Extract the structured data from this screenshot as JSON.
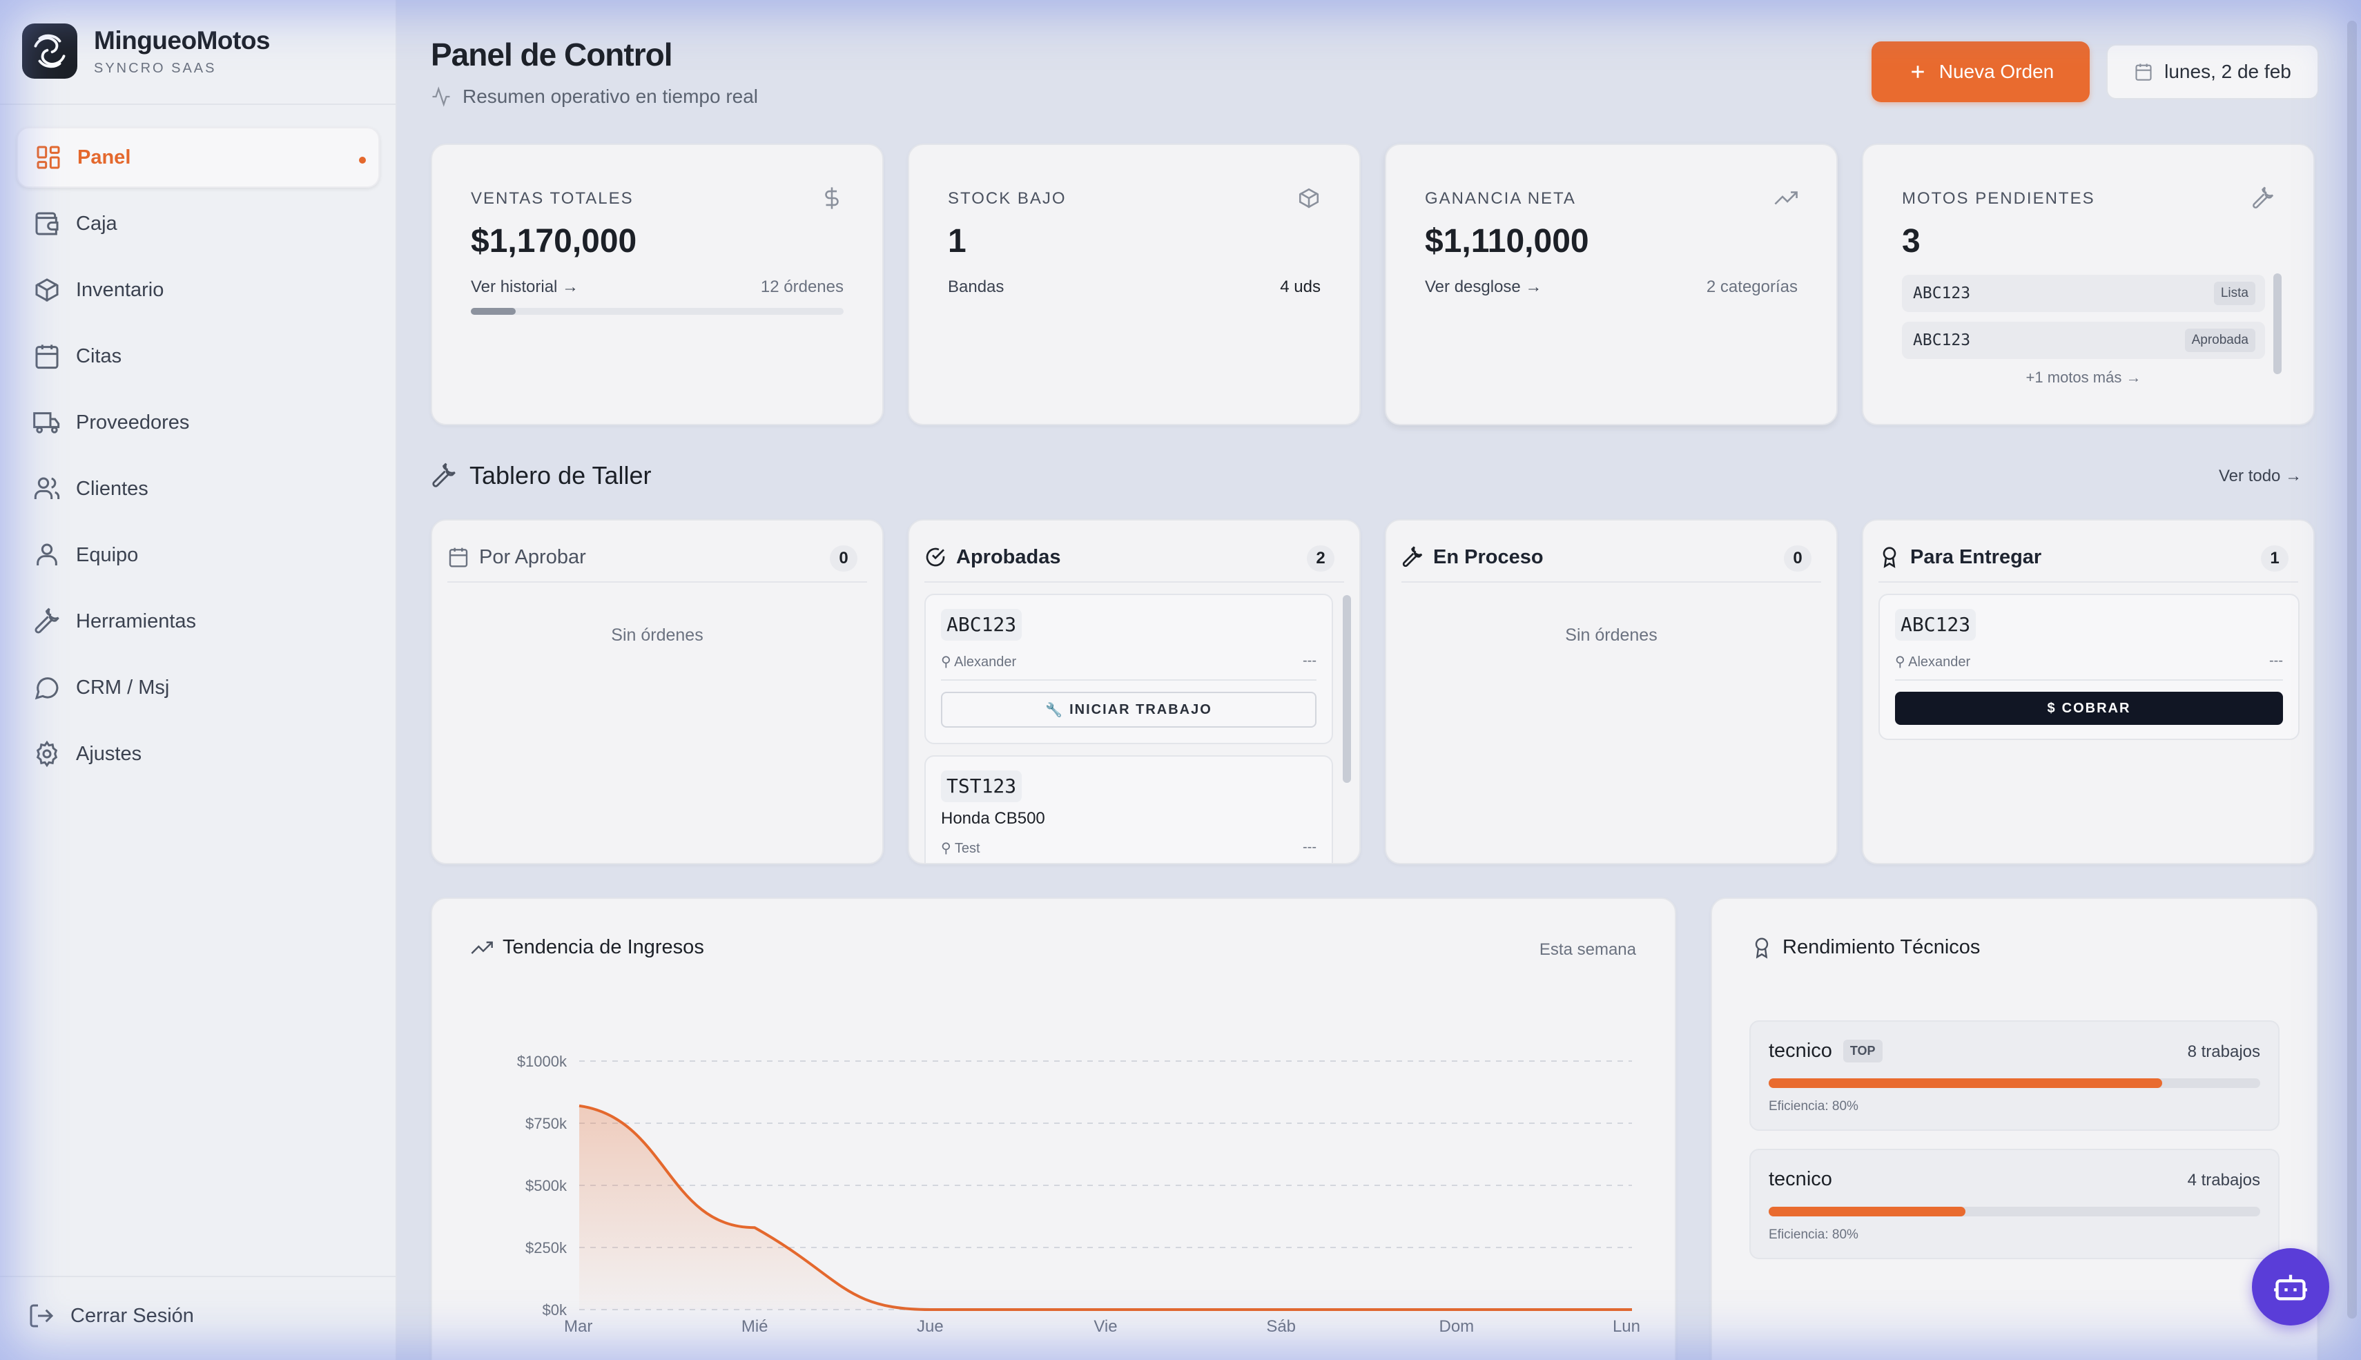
{
  "brand": {
    "name": "MingueoMotos",
    "subtitle": "SYNCRO SAAS"
  },
  "sidebar": {
    "items": [
      {
        "label": "Panel",
        "icon": "dashboard-icon",
        "active": true
      },
      {
        "label": "Caja",
        "icon": "wallet-icon"
      },
      {
        "label": "Inventario",
        "icon": "box-icon"
      },
      {
        "label": "Citas",
        "icon": "calendar-icon"
      },
      {
        "label": "Proveedores",
        "icon": "truck-icon"
      },
      {
        "label": "Clientes",
        "icon": "users-icon"
      },
      {
        "label": "Equipo",
        "icon": "user-icon"
      },
      {
        "label": "Herramientas",
        "icon": "wrench-icon"
      },
      {
        "label": "CRM / Msj",
        "icon": "chat-icon"
      },
      {
        "label": "Ajustes",
        "icon": "gear-icon"
      }
    ],
    "logout_label": "Cerrar Sesión"
  },
  "header": {
    "title": "Panel de Control",
    "subtitle": "Resumen operativo en tiempo real",
    "new_order_label": "Nueva Orden",
    "date_label": "lunes, 2 de feb"
  },
  "stats": {
    "ventas": {
      "label": "VENTAS TOTALES",
      "value": "$1,170,000",
      "link": "Ver historial →",
      "meta": "12 órdenes",
      "progress": 0.12
    },
    "stock": {
      "label": "STOCK BAJO",
      "value": "1",
      "item": "Bandas",
      "qty": "4 uds"
    },
    "ganancia": {
      "label": "GANANCIA NETA",
      "value": "$1,110,000",
      "link": "Ver desglose →",
      "meta": "2 categorías"
    },
    "pendientes": {
      "label": "MOTOS PENDIENTES",
      "value": "3",
      "rows": [
        {
          "plate": "ABC123",
          "status": "Lista"
        },
        {
          "plate": "ABC123",
          "status": "Aprobada"
        }
      ],
      "more": "+1 motos más →"
    }
  },
  "board": {
    "title": "Tablero de Taller",
    "see_all": "Ver todo →",
    "columns": {
      "por_aprobar": {
        "title": "Por Aprobar",
        "count": "0",
        "empty": "Sin órdenes"
      },
      "aprobadas": {
        "title": "Aprobadas",
        "count": "2",
        "orders": [
          {
            "id": "ABC123",
            "tech": "Alexander",
            "dash": "---",
            "action": "INICIAR TRABAJO"
          },
          {
            "id": "TST123",
            "model": "Honda CB500",
            "tech": "Test",
            "dash": "---"
          }
        ]
      },
      "en_proceso": {
        "title": "En Proceso",
        "count": "0",
        "empty": "Sin órdenes"
      },
      "para_entregar": {
        "title": "Para Entregar",
        "count": "1",
        "orders": [
          {
            "id": "ABC123",
            "tech": "Alexander",
            "dash": "---",
            "action": "COBRAR"
          }
        ]
      }
    }
  },
  "income_chart": {
    "title": "Tendencia de Ingresos",
    "range": "Esta semana"
  },
  "chart_data": {
    "type": "area",
    "title": "Tendencia de Ingresos",
    "categories": [
      "Mar",
      "Mié",
      "Jue",
      "Vie",
      "Sáb",
      "Dom",
      "Lun"
    ],
    "values": [
      820,
      330,
      0,
      0,
      0,
      0,
      0
    ],
    "y_ticks": [
      "$0k",
      "$250k",
      "$500k",
      "$750k",
      "$1000k"
    ],
    "ylim": [
      0,
      1000
    ],
    "grid": true,
    "line_color": "#e4682d"
  },
  "technicians": {
    "title": "Rendimiento Técnicos",
    "rows": [
      {
        "name": "tecnico",
        "badge": "TOP",
        "jobs": "8 trabajos",
        "efficiency": "Eficiencia: 80%",
        "share": 0.8
      },
      {
        "name": "tecnico",
        "jobs": "4 trabajos",
        "efficiency": "Eficiencia: 80%",
        "share": 0.4
      }
    ]
  },
  "colors": {
    "accent": "#e96b2f",
    "dark": "#111624",
    "assistant": "#5a3dd8"
  }
}
